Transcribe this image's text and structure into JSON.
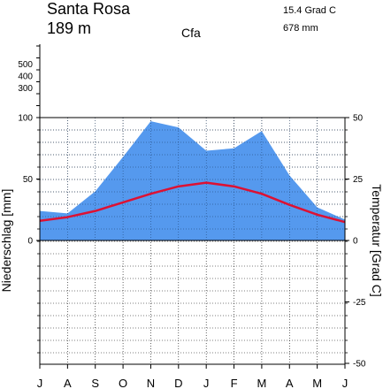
{
  "header": {
    "station": "Santa Rosa",
    "elevation": "189 m",
    "climate_class": "Cfa",
    "mean_temp": "15.4 Grad C",
    "annual_precip": "678 mm"
  },
  "axes": {
    "left_label": "Niederschlag [mm]",
    "right_label": "Temperatur [Grad C]"
  },
  "colors": {
    "precip_fill": "#5599ee",
    "temp_line": "#dd1133"
  },
  "chart_data": {
    "type": "area",
    "title": "Santa Rosa",
    "months": [
      "J",
      "A",
      "S",
      "O",
      "N",
      "D",
      "J",
      "F",
      "M",
      "A",
      "M",
      "J"
    ],
    "series": [
      {
        "name": "Niederschlag [mm]",
        "unit": "mm",
        "values": [
          24,
          22,
          40,
          68,
          97,
          92,
          73,
          75,
          89,
          53,
          27,
          17
        ]
      },
      {
        "name": "Temperatur [Grad C]",
        "unit": "Grad C",
        "values": [
          8,
          9.5,
          12,
          15.5,
          19,
          22,
          23.5,
          22,
          19,
          14.5,
          10.5,
          7.5
        ]
      }
    ],
    "precip_ticks_lower": [
      "0",
      "50",
      "100"
    ],
    "precip_ticks_upper": [
      "300",
      "400",
      "500"
    ],
    "temp_ticks": [
      "50",
      "25",
      "0",
      "-25",
      "-50"
    ],
    "precip_range": [
      0,
      100
    ],
    "temp_range": [
      -50,
      50
    ],
    "grid": true
  }
}
